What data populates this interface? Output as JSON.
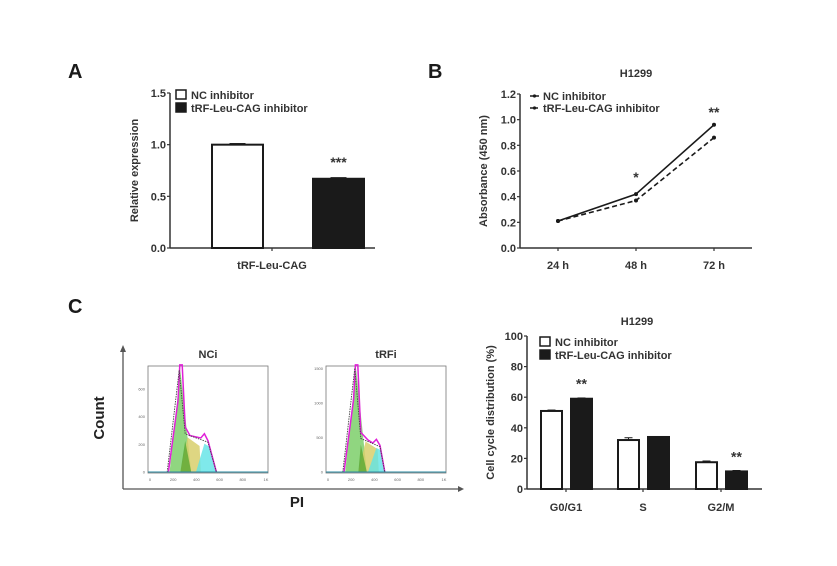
{
  "figure": {
    "panel_letters": [
      "A",
      "B",
      "C"
    ]
  },
  "chart_data": [
    {
      "id": "A",
      "type": "bar",
      "title": "",
      "xlabel": "tRF-Leu-CAG",
      "ylabel": "Relative expression",
      "ylim": [
        0,
        1.5
      ],
      "yticks": [
        "0.0",
        "0.5",
        "1.0",
        "1.5"
      ],
      "ytick_values": [
        0,
        0.5,
        1.0,
        1.5
      ],
      "categories": [
        "tRF-Leu-CAG"
      ],
      "series": [
        {
          "name": "NC inhibitor",
          "values": [
            1.0
          ],
          "errors": [
            0.01
          ],
          "fill": "#ffffff"
        },
        {
          "name": "tRF-Leu-CAG inhibitor",
          "values": [
            0.67
          ],
          "errors": [
            0.01
          ],
          "fill": "#1a1a1a"
        }
      ],
      "annotations": [
        {
          "text": "***",
          "series": 1,
          "category": 0
        }
      ],
      "legend_position": "top-left"
    },
    {
      "id": "B",
      "type": "line",
      "title": "H1299",
      "xlabel": "",
      "ylabel": "Absorbance (450 nm)",
      "ylim": [
        0,
        1.2
      ],
      "yticks": [
        "0.0",
        "0.2",
        "0.4",
        "0.6",
        "0.8",
        "1.0",
        "1.2"
      ],
      "ytick_values": [
        0,
        0.2,
        0.4,
        0.6,
        0.8,
        1.0,
        1.2
      ],
      "categories": [
        "24 h",
        "48 h",
        "72 h"
      ],
      "series": [
        {
          "name": "NC inhibitor",
          "values": [
            0.21,
            0.42,
            0.96
          ],
          "style": "solid"
        },
        {
          "name": "tRF-Leu-CAG inhibitor",
          "values": [
            0.21,
            0.37,
            0.86
          ],
          "style": "dashed"
        }
      ],
      "annotations": [
        {
          "text": "*",
          "category": 1
        },
        {
          "text": "**",
          "category": 2
        }
      ],
      "legend_position": "top-left"
    },
    {
      "id": "C-flow",
      "type": "area",
      "ylabel": "Count",
      "xlabel": "PI",
      "histograms": [
        {
          "title": "NCi",
          "xticks": [
            "0",
            "200",
            "400",
            "600",
            "800",
            "1K"
          ],
          "yticks": [
            "0",
            "200",
            "400",
            "600"
          ],
          "ymax": 760
        },
        {
          "title": "tRFi",
          "xticks": [
            "0",
            "200",
            "400",
            "600",
            "800",
            "1K"
          ],
          "yticks": [
            "0",
            "500",
            "1000",
            "1500"
          ],
          "ymax": 1520
        }
      ]
    },
    {
      "id": "C-bar",
      "type": "bar",
      "title": "H1299",
      "xlabel": "",
      "ylabel": "Cell cycle distribution (%)",
      "ylim": [
        0,
        100
      ],
      "yticks": [
        "0",
        "20",
        "40",
        "60",
        "80",
        "100"
      ],
      "ytick_values": [
        0,
        20,
        40,
        60,
        80,
        100
      ],
      "categories": [
        "G0/G1",
        "S",
        "G2/M"
      ],
      "series": [
        {
          "name": "NC inhibitor",
          "values": [
            51,
            32,
            17.5
          ],
          "errors": [
            0.6,
            1.5,
            0.8
          ],
          "fill": "#ffffff"
        },
        {
          "name": "tRF-Leu-CAG inhibitor",
          "values": [
            59,
            34,
            11.5
          ],
          "errors": [
            0.5,
            0.3,
            0.6
          ],
          "fill": "#1a1a1a"
        }
      ],
      "annotations": [
        {
          "text": "**",
          "series": 1,
          "category": 0
        },
        {
          "text": "**",
          "series": 1,
          "category": 2
        }
      ],
      "legend_position": "top-left"
    }
  ]
}
